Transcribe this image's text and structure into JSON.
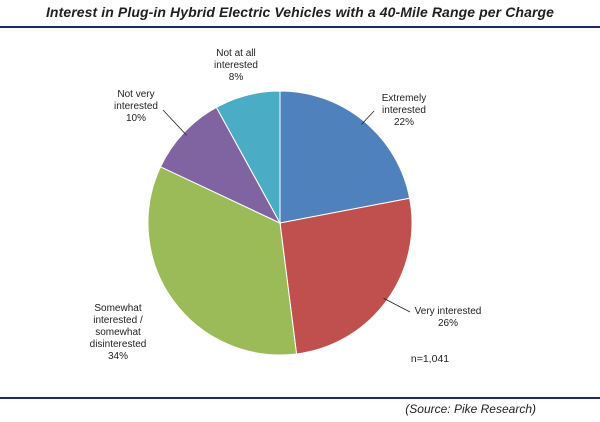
{
  "chart_data": {
    "type": "pie",
    "title": "Interest in Plug-in Hybrid Electric Vehicles with a 40-Mile Range per Charge",
    "slices": [
      {
        "lines": [
          "Extremely",
          "interested",
          "22%"
        ],
        "value": 22,
        "color": "#4f81bd"
      },
      {
        "lines": [
          "Very interested",
          "26%"
        ],
        "value": 26,
        "color": "#c0504d"
      },
      {
        "lines": [
          "Somewhat",
          "interested /",
          "somewhat",
          "disinterested",
          "34%"
        ],
        "value": 34,
        "color": "#9bbb59"
      },
      {
        "lines": [
          "Not very",
          "interested",
          "10%"
        ],
        "value": 10,
        "color": "#8064a2"
      },
      {
        "lines": [
          "Not at all",
          "interested",
          "8%"
        ],
        "value": 8,
        "color": "#4bacc6"
      }
    ],
    "note": "n=1,041",
    "source": "(Source: Pike Research)"
  }
}
